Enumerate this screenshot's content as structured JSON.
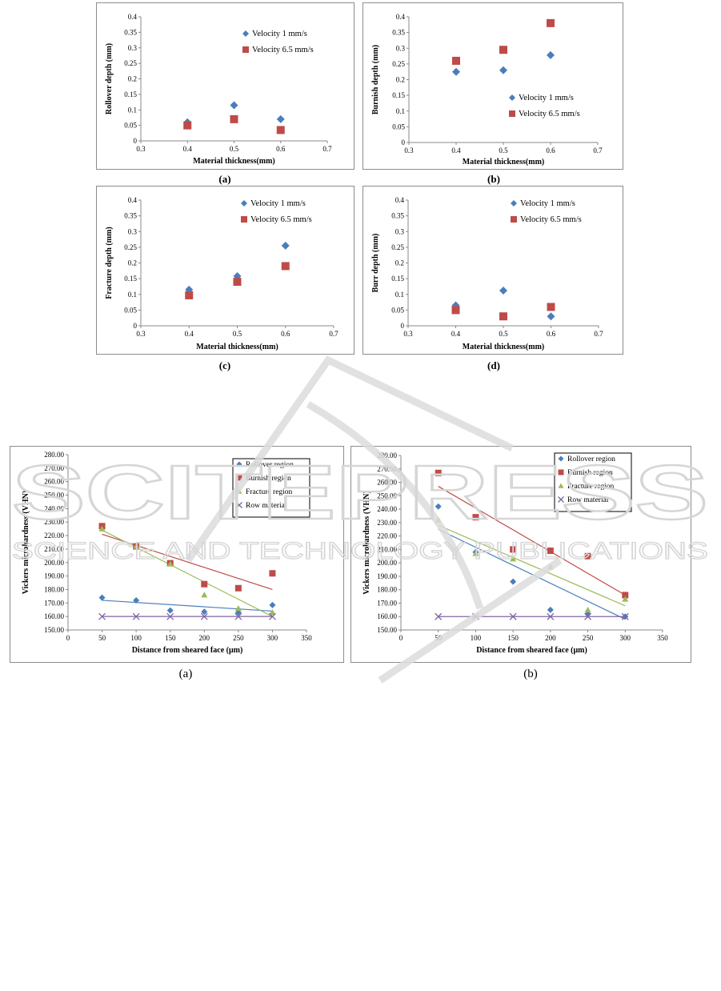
{
  "charts": [
    {
      "type": "scatter",
      "ylabel": "Rollover depth (mm)",
      "xlabel": "Material thickness(mm)",
      "xlim": [
        0.3,
        0.7
      ],
      "ylim": [
        0,
        0.4
      ],
      "x_ticks": [
        "0.3",
        "0.4",
        "0.5",
        "0.6",
        "0.7"
      ],
      "y_ticks": [
        "0",
        "0.05",
        "0.1",
        "0.15",
        "0.2",
        "0.25",
        "0.3",
        "0.35",
        "0.4"
      ],
      "legend_position": "top-right",
      "series": [
        {
          "name": "Velocity 1 mm/s",
          "marker": "diamond",
          "color": "#4a7ebb",
          "x": [
            0.4,
            0.5,
            0.6
          ],
          "y": [
            0.06,
            0.115,
            0.07
          ]
        },
        {
          "name": "Velocity 6.5 mm/s",
          "marker": "square",
          "color": "#be4b48",
          "x": [
            0.4,
            0.5,
            0.6
          ],
          "y": [
            0.05,
            0.07,
            0.035
          ]
        }
      ]
    },
    {
      "type": "scatter",
      "ylabel": "Burnish depth (mm)",
      "xlabel": "Material thickness(mm)",
      "xlim": [
        0.3,
        0.7
      ],
      "ylim": [
        0,
        0.4
      ],
      "x_ticks": [
        "0.3",
        "0.4",
        "0.5",
        "0.6",
        "0.7"
      ],
      "y_ticks": [
        "0",
        "0.05",
        "0.1",
        "0.15",
        "0.2",
        "0.25",
        "0.3",
        "0.35",
        "0.4"
      ],
      "legend_position": "bottom-right",
      "series": [
        {
          "name": "Velocity 1 mm/s",
          "marker": "diamond",
          "color": "#4a7ebb",
          "x": [
            0.4,
            0.5,
            0.6
          ],
          "y": [
            0.225,
            0.23,
            0.278
          ]
        },
        {
          "name": "Velocity 6.5 mm/s",
          "marker": "square",
          "color": "#be4b48",
          "x": [
            0.4,
            0.5,
            0.6
          ],
          "y": [
            0.26,
            0.295,
            0.38
          ]
        }
      ]
    },
    {
      "type": "scatter",
      "ylabel": "Fracture depth (mm)",
      "xlabel": "Material thickness(mm)",
      "xlim": [
        0.3,
        0.7
      ],
      "ylim": [
        0,
        0.4
      ],
      "x_ticks": [
        "0.3",
        "0.4",
        "0.5",
        "0.6",
        "0.7"
      ],
      "y_ticks": [
        "0",
        "0.05",
        "0.1",
        "0.15",
        "0.2",
        "0.25",
        "0.3",
        "0.35",
        "0.4"
      ],
      "legend_position": "top-right",
      "series": [
        {
          "name": "Velocity 1 mm/s",
          "marker": "diamond",
          "color": "#4a7ebb",
          "x": [
            0.4,
            0.5,
            0.6
          ],
          "y": [
            0.115,
            0.158,
            0.255
          ]
        },
        {
          "name": "Velocity 6.5 mm/s",
          "marker": "square",
          "color": "#be4b48",
          "x": [
            0.4,
            0.5,
            0.6
          ],
          "y": [
            0.097,
            0.14,
            0.19
          ]
        }
      ]
    },
    {
      "type": "scatter",
      "ylabel": "Burr depth (mm)",
      "xlabel": "Material thickness(mm)",
      "xlim": [
        0.3,
        0.7
      ],
      "ylim": [
        0,
        0.4
      ],
      "x_ticks": [
        "0.3",
        "0.4",
        "0.5",
        "0.6",
        "0.7"
      ],
      "y_ticks": [
        "0",
        "0.05",
        "0.1",
        "0.15",
        "0.2",
        "0.25",
        "0.3",
        "0.35",
        "0.4"
      ],
      "legend_position": "top-right",
      "series": [
        {
          "name": "Velocity 1 mm/s",
          "marker": "diamond",
          "color": "#4a7ebb",
          "x": [
            0.4,
            0.5,
            0.6
          ],
          "y": [
            0.065,
            0.112,
            0.03
          ]
        },
        {
          "name": "Velocity 6.5 mm/s",
          "marker": "square",
          "color": "#be4b48",
          "x": [
            0.4,
            0.5,
            0.6
          ],
          "y": [
            0.05,
            0.03,
            0.06
          ]
        }
      ]
    },
    {
      "type": "scatter",
      "ylabel": "Vickers microhardness (VHN)",
      "xlabel": "Distance from sheared face (μm)",
      "xlim": [
        0,
        350
      ],
      "ylim": [
        150,
        280
      ],
      "x_ticks": [
        "0",
        "50",
        "100",
        "150",
        "200",
        "250",
        "300",
        "350"
      ],
      "y_ticks": [
        "150.00",
        "160.00",
        "170.00",
        "180.00",
        "190.00",
        "200.00",
        "210.00",
        "220.00",
        "230.00",
        "240.00",
        "250.00",
        "260.00",
        "270.00",
        "280.00"
      ],
      "legend_position": "top-right",
      "series": [
        {
          "name": "Rollover region",
          "marker": "diamond",
          "color": "#4a7ebb",
          "x": [
            50,
            100,
            150,
            200,
            250,
            300
          ],
          "y": [
            174,
            172,
            164.5,
            163.5,
            163,
            168.5
          ],
          "trend": [
            [
              50,
              172
            ],
            [
              300,
              164
            ]
          ]
        },
        {
          "name": "Burnish region",
          "marker": "square",
          "color": "#be4b48",
          "x": [
            50,
            100,
            150,
            200,
            250,
            300
          ],
          "y": [
            227,
            212,
            199.5,
            184,
            181,
            192
          ],
          "trend": [
            [
              50,
              221
            ],
            [
              300,
              180
            ]
          ]
        },
        {
          "name": "Fracture region",
          "marker": "triangle",
          "color": "#9bbb59",
          "x": [
            50,
            100,
            150,
            200,
            250,
            300
          ],
          "y": [
            225,
            212,
            199,
            176,
            166,
            163
          ],
          "trend": [
            [
              50,
              224
            ],
            [
              300,
              160
            ]
          ]
        },
        {
          "name": "Row material",
          "marker": "x",
          "color": "#8064a2",
          "x": [
            50,
            100,
            150,
            200,
            250,
            300
          ],
          "y": [
            160,
            160,
            160,
            160,
            160,
            160
          ],
          "trend": [
            [
              50,
              160
            ],
            [
              300,
              160
            ]
          ]
        }
      ]
    },
    {
      "type": "scatter",
      "ylabel": "Vickers microhardness (VHN)",
      "xlabel": "Distance from sheared face (μm)",
      "xlim": [
        0,
        350
      ],
      "ylim": [
        150,
        280
      ],
      "x_ticks": [
        "0",
        "50",
        "100",
        "150",
        "200",
        "250",
        "300",
        "350"
      ],
      "y_ticks": [
        "150.00",
        "160.00",
        "170.00",
        "180.00",
        "190.00",
        "200.00",
        "210.00",
        "220.00",
        "230.00",
        "240.00",
        "250.00",
        "260.00",
        "270.00",
        "280.00"
      ],
      "legend_position": "top-right",
      "series": [
        {
          "name": "Rollover region",
          "marker": "diamond",
          "color": "#4a7ebb",
          "x": [
            50,
            100,
            150,
            200,
            250,
            300
          ],
          "y": [
            242,
            208,
            186,
            165,
            162,
            160
          ],
          "trend": [
            [
              50,
              225
            ],
            [
              300,
              158
            ]
          ]
        },
        {
          "name": "Burnish region",
          "marker": "square",
          "color": "#be4b48",
          "x": [
            50,
            100,
            150,
            200,
            250,
            300
          ],
          "y": [
            267,
            234,
            210,
            209,
            205,
            176
          ],
          "trend": [
            [
              50,
              257
            ],
            [
              300,
              176
            ]
          ]
        },
        {
          "name": "Fracture region",
          "marker": "triangle",
          "color": "#9bbb59",
          "x": [
            50,
            100,
            150,
            200,
            250,
            300
          ],
          "y": [
            232,
            207,
            203,
            197,
            165,
            173
          ],
          "trend": [
            [
              50,
              228
            ],
            [
              300,
              168
            ]
          ]
        },
        {
          "name": "Row material",
          "marker": "x",
          "color": "#8064a2",
          "x": [
            50,
            100,
            150,
            200,
            250,
            300
          ],
          "y": [
            160,
            160,
            160,
            160,
            160,
            160
          ],
          "trend": [
            [
              50,
              160
            ],
            [
              300,
              160
            ]
          ]
        }
      ]
    }
  ],
  "captions": [
    "(a)",
    "(b)",
    "(c)",
    "(d)",
    "(a)",
    "(b)"
  ],
  "watermark": {
    "line1": "SCITEPRESS",
    "line2": "SCIENCE AND TECHNOLOGY PUBLICATIONS",
    "color": "#d9d9d9"
  }
}
